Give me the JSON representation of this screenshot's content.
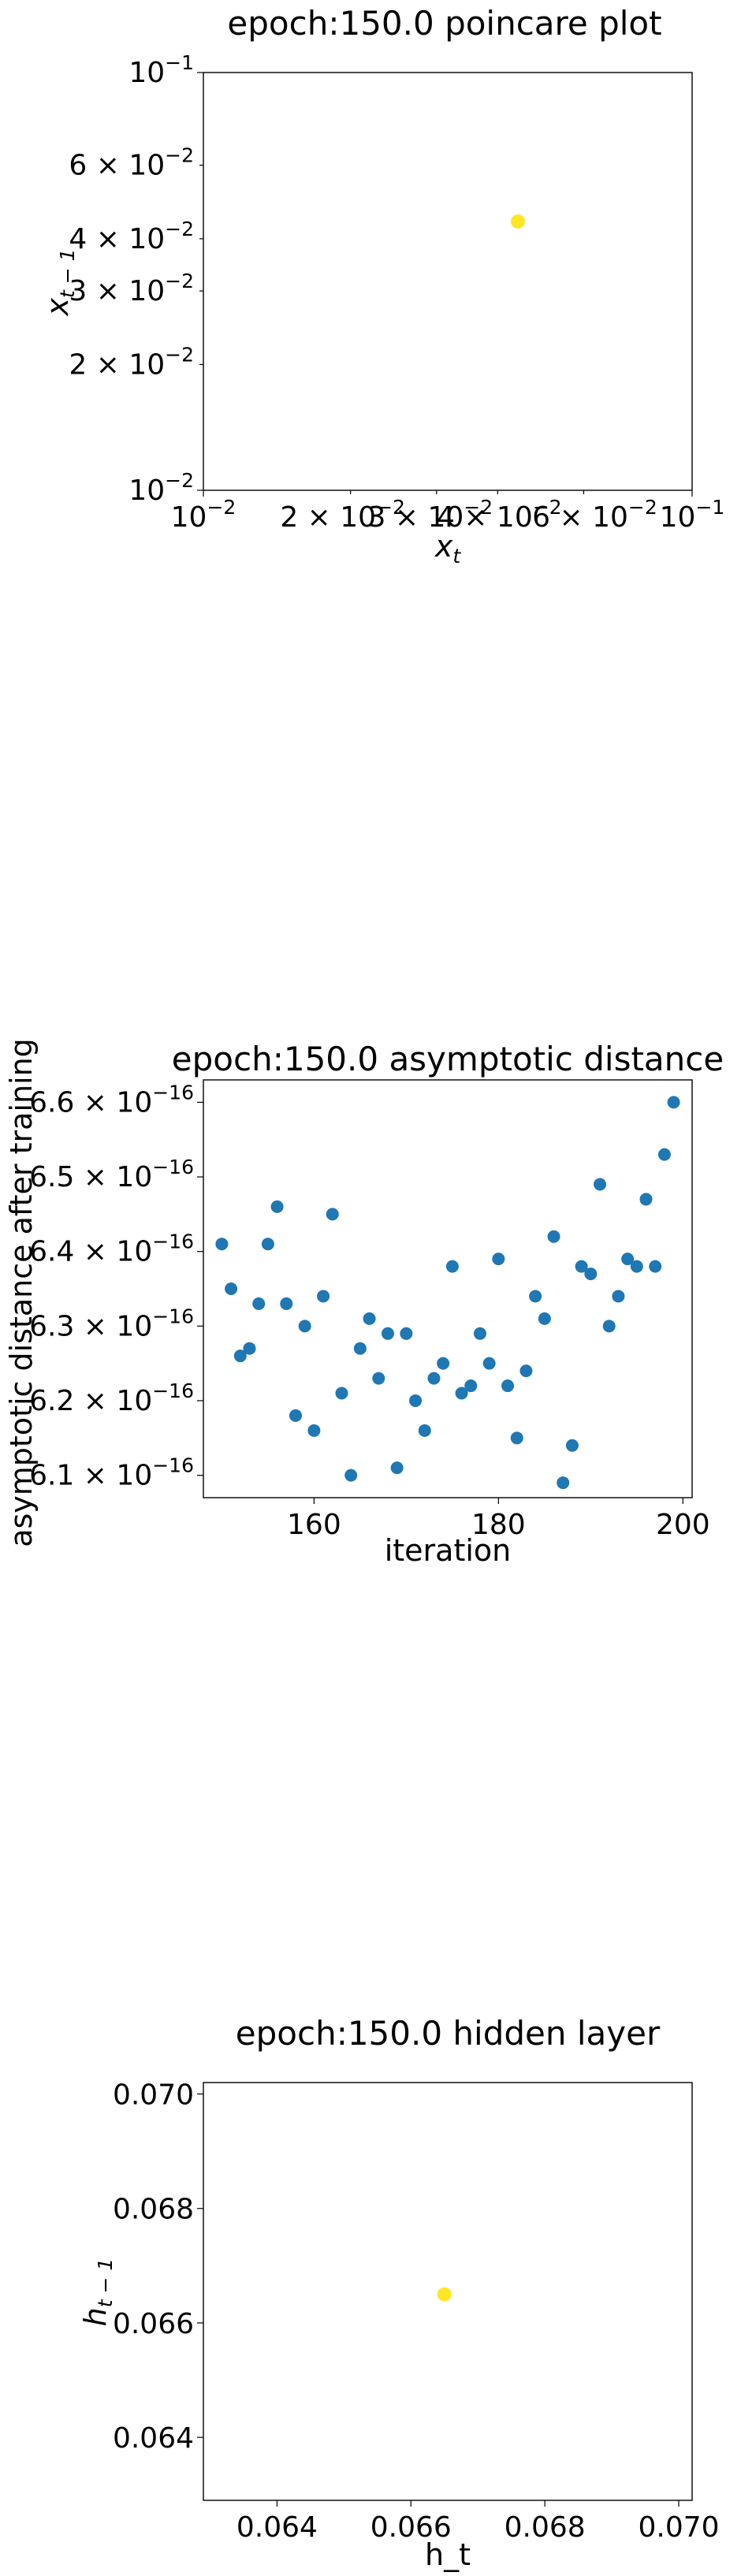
{
  "chart_data": [
    {
      "type": "scatter",
      "title": "epoch:150.0 poincare plot",
      "xlabel": "x",
      "xlabel_sub": "t",
      "ylabel": "x",
      "ylabel_sub": "t − 1",
      "xscale": "log",
      "yscale": "log",
      "xlim": [
        0.01,
        0.1
      ],
      "ylim": [
        0.01,
        0.1
      ],
      "x_ticks": [
        {
          "value": 0.01,
          "mantissa": "",
          "exponent": "−2"
        },
        {
          "value": 0.02,
          "mantissa": "2",
          "exponent": "−2"
        },
        {
          "value": 0.03,
          "mantissa": "3",
          "exponent": "−2"
        },
        {
          "value": 0.04,
          "mantissa": "4",
          "exponent": "−2"
        },
        {
          "value": 0.06,
          "mantissa": "6",
          "exponent": "−2"
        },
        {
          "value": 0.1,
          "mantissa": "",
          "exponent": "−1"
        }
      ],
      "y_ticks": [
        {
          "value": 0.01,
          "mantissa": "",
          "exponent": "−2"
        },
        {
          "value": 0.02,
          "mantissa": "2",
          "exponent": "−2"
        },
        {
          "value": 0.03,
          "mantissa": "3",
          "exponent": "−2"
        },
        {
          "value": 0.04,
          "mantissa": "4",
          "exponent": "−2"
        },
        {
          "value": 0.06,
          "mantissa": "6",
          "exponent": "−2"
        },
        {
          "value": 0.1,
          "mantissa": "",
          "exponent": "−1"
        }
      ],
      "point_color": "#fde725",
      "points": [
        {
          "x": 0.044,
          "y": 0.044
        }
      ]
    },
    {
      "type": "scatter",
      "title": "epoch:150.0 asymptotic distance",
      "xlabel": "iteration",
      "ylabel": "asymptotic distance after training",
      "xlim": [
        148,
        201
      ],
      "ylim": [
        6.07,
        6.63
      ],
      "y_unit_exponent": "−16",
      "x_ticks": [
        {
          "value": 160,
          "label": "160"
        },
        {
          "value": 180,
          "label": "180"
        },
        {
          "value": 200,
          "label": "200"
        }
      ],
      "y_ticks": [
        {
          "value": 6.1,
          "mantissa": "6.1"
        },
        {
          "value": 6.2,
          "mantissa": "6.2"
        },
        {
          "value": 6.3,
          "mantissa": "6.3"
        },
        {
          "value": 6.4,
          "mantissa": "6.4"
        },
        {
          "value": 6.5,
          "mantissa": "6.5"
        },
        {
          "value": 6.6,
          "mantissa": "6.6"
        }
      ],
      "point_color": "#1f77b4",
      "x": [
        150,
        151,
        152,
        153,
        154,
        155,
        156,
        157,
        158,
        159,
        160,
        161,
        162,
        163,
        164,
        165,
        166,
        167,
        168,
        169,
        170,
        171,
        172,
        173,
        174,
        175,
        176,
        177,
        178,
        179,
        180,
        181,
        182,
        183,
        184,
        185,
        186,
        187,
        188,
        189,
        190,
        191,
        192,
        193,
        194,
        195,
        196,
        197,
        198,
        199
      ],
      "y": [
        6.41,
        6.35,
        6.26,
        6.27,
        6.33,
        6.41,
        6.46,
        6.33,
        6.18,
        6.3,
        6.16,
        6.34,
        6.45,
        6.21,
        6.1,
        6.27,
        6.31,
        6.23,
        6.29,
        6.11,
        6.29,
        6.2,
        6.16,
        6.23,
        6.25,
        6.38,
        6.21,
        6.22,
        6.29,
        6.25,
        6.39,
        6.22,
        6.15,
        6.24,
        6.34,
        6.31,
        6.42,
        6.09,
        6.14,
        6.38,
        6.37,
        6.49,
        6.3,
        6.34,
        6.39,
        6.38,
        6.47,
        6.38,
        6.53,
        6.6
      ]
    },
    {
      "type": "scatter",
      "title": "epoch:150.0 hidden layer",
      "xlabel": "h_t",
      "ylabel": "h",
      "ylabel_sub": "t − 1",
      "xlim": [
        0.0629,
        0.0702
      ],
      "ylim": [
        0.0629,
        0.0702
      ],
      "x_ticks": [
        {
          "value": 0.064,
          "label": "0.064"
        },
        {
          "value": 0.066,
          "label": "0.066"
        },
        {
          "value": 0.068,
          "label": "0.068"
        },
        {
          "value": 0.07,
          "label": "0.070"
        }
      ],
      "y_ticks": [
        {
          "value": 0.064,
          "label": "0.064"
        },
        {
          "value": 0.066,
          "label": "0.066"
        },
        {
          "value": 0.068,
          "label": "0.068"
        },
        {
          "value": 0.07,
          "label": "0.070"
        }
      ],
      "point_color": "#fde725",
      "points": [
        {
          "x": 0.0665,
          "y": 0.0665
        }
      ]
    }
  ]
}
